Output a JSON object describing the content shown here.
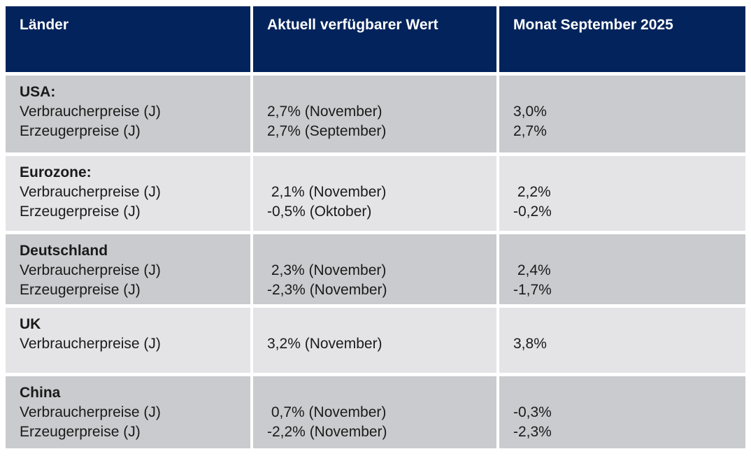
{
  "table": {
    "headers": [
      "Länder",
      "Aktuell verfügbarer Wert",
      "Monat September 2025"
    ],
    "rows": [
      {
        "country": "USA:",
        "items": [
          {
            "label": "Verbraucherpreise (J)",
            "current": "2,7% (November)",
            "september": "3,0%"
          },
          {
            "label": "Erzeugerpreise (J)",
            "current": "2,7% (September)",
            "september": "2,7%"
          }
        ]
      },
      {
        "country": "Eurozone:",
        "items": [
          {
            "label": "Verbraucherpreise (J)",
            "current": " 2,1% (November)",
            "september": " 2,2%"
          },
          {
            "label": "Erzeugerpreise (J)",
            "current": "-0,5% (Oktober)",
            "september": "-0,2%"
          }
        ]
      },
      {
        "country": "Deutschland",
        "items": [
          {
            "label": "Verbraucherpreise (J)",
            "current": " 2,3% (November)",
            "september": " 2,4%"
          },
          {
            "label": "Erzeugerpreise (J)",
            "current": "-2,3% (November)",
            "september": "-1,7%"
          }
        ]
      },
      {
        "country": "UK",
        "items": [
          {
            "label": "Verbraucherpreise (J)",
            "current": "3,2% (November)",
            "september": "3,8%"
          }
        ]
      },
      {
        "country": "China",
        "items": [
          {
            "label": "Verbraucherpreise (J)",
            "current": " 0,7% (November)",
            "september": "-0,3%"
          },
          {
            "label": "Erzeugerpreise (J)",
            "current": "-2,2% (November)",
            "september": "-2,3%"
          }
        ]
      }
    ],
    "colors": {
      "header_bg": "#03235c",
      "header_text": "#ffffff",
      "row_dark": "#cacbce",
      "row_light": "#e4e4e6",
      "text": "#1a1a1a",
      "background": "#ffffff"
    }
  }
}
